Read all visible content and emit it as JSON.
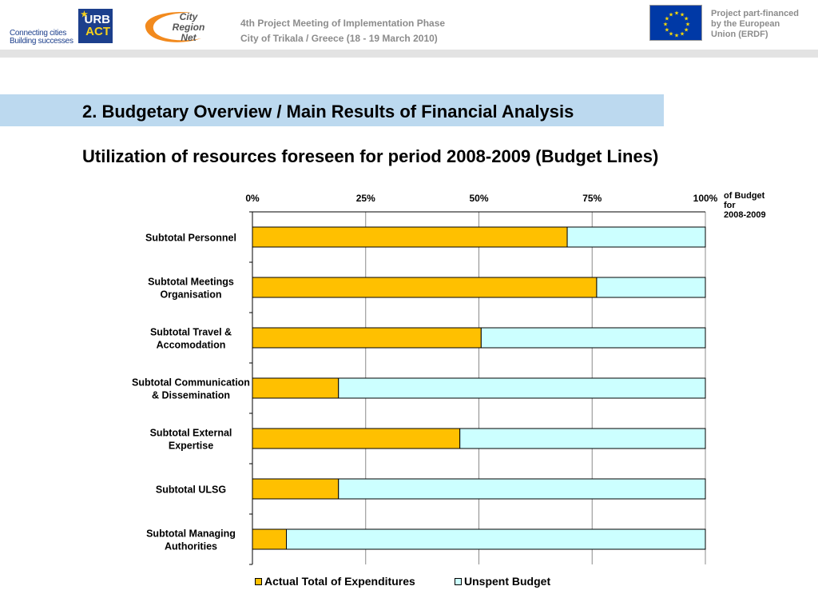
{
  "header": {
    "urbact_tagline": [
      "Connecting cities",
      "Building successes"
    ],
    "urbact_logo": [
      "URB",
      "ACT"
    ],
    "city_region_net_logo": [
      "City",
      "Region",
      "Net"
    ],
    "meeting_line1": "4th Project Meeting of Implementation Phase",
    "meeting_line2": "City of Trikala / Greece (18 - 19 March 2010)",
    "eu_note": [
      "Project part-financed",
      "by the European",
      "Union (ERDF)"
    ]
  },
  "section_title": "2. Budgetary Overview / Main Results of Financial Analysis",
  "subtitle": "Utilization of resources foreseen for period 2008-2009 (Budget Lines)",
  "chart_note": [
    "of Budget",
    "for",
    "2008-2009"
  ],
  "colors": {
    "actual": "#ffc000",
    "unspent": "#ccffff",
    "section_band": "#bcd9ef",
    "grid": "#8c8c8c"
  },
  "chart_data": {
    "type": "bar",
    "orientation": "horizontal",
    "stacked": "percent",
    "categories": [
      "Subtotal Personnel",
      "Subtotal Meetings Organisation",
      "Subtotal Travel & Accomodation",
      "Subtotal Communication & Dissemination",
      "Subtotal External Expertise",
      "Subtotal ULSG",
      "Subtotal Managing Authorities"
    ],
    "category_lines": [
      [
        "Subtotal Personnel"
      ],
      [
        "Subtotal Meetings",
        "Organisation"
      ],
      [
        "Subtotal Travel &",
        "Accomodation"
      ],
      [
        "Subtotal Communication",
        "& Dissemination"
      ],
      [
        "Subtotal External",
        "Expertise"
      ],
      [
        "Subtotal ULSG"
      ],
      [
        "Subtotal Managing",
        "Authorities"
      ]
    ],
    "series": [
      {
        "name": "Actual Total of Expenditures",
        "values": [
          69.5,
          76,
          50.5,
          19,
          45.8,
          19,
          7.5
        ]
      },
      {
        "name": "Unspent Budget",
        "values": [
          30.5,
          24,
          49.5,
          81,
          54.2,
          81,
          92.5
        ]
      }
    ],
    "xticks": [
      "0%",
      "25%",
      "50%",
      "75%",
      "100%"
    ],
    "xlim": [
      0,
      100
    ],
    "axis_position": "top",
    "grid": true,
    "legend_position": "bottom"
  }
}
